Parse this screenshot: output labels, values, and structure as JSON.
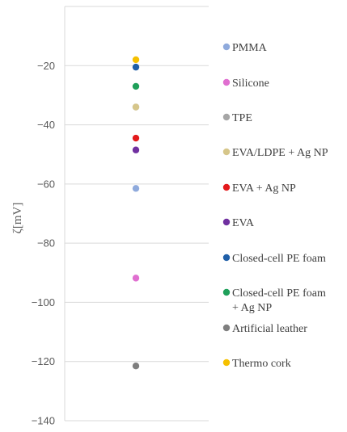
{
  "chart_data": {
    "type": "scatter",
    "ylabel": "ζ[mV]",
    "ylim": [
      -140,
      0
    ],
    "yticks": [
      -20,
      -40,
      -60,
      -80,
      -100,
      -120,
      -140
    ],
    "grid": true,
    "legend_position": "right",
    "series": [
      {
        "name": "PMMA",
        "value": -61.5,
        "color": "#8faadc"
      },
      {
        "name": "Silicone",
        "value": -91.8,
        "color": "#e06fd0"
      },
      {
        "name": "TPE",
        "value": -34.0,
        "color": "#a6a6a6"
      },
      {
        "name": "EVA/LDPE + Ag NP",
        "value": -34.0,
        "color": "#d6c68a"
      },
      {
        "name": "EVA + Ag NP",
        "value": -44.5,
        "color": "#e31a1c"
      },
      {
        "name": "EVA",
        "value": -48.5,
        "color": "#7030a0"
      },
      {
        "name": "Closed-cell PE foam",
        "value": -20.5,
        "color": "#1f5fa8"
      },
      {
        "name": "Closed-cell PE foam + Ag NP",
        "name_lines": [
          "Closed-cell PE foam",
          "+ Ag NP"
        ],
        "value": -27.0,
        "color": "#1fa05a"
      },
      {
        "name": "Artificial leather",
        "value": -121.5,
        "color": "#7f7f7f"
      },
      {
        "name": "Thermo cork",
        "value": -18.0,
        "color": "#f5c000"
      }
    ]
  }
}
